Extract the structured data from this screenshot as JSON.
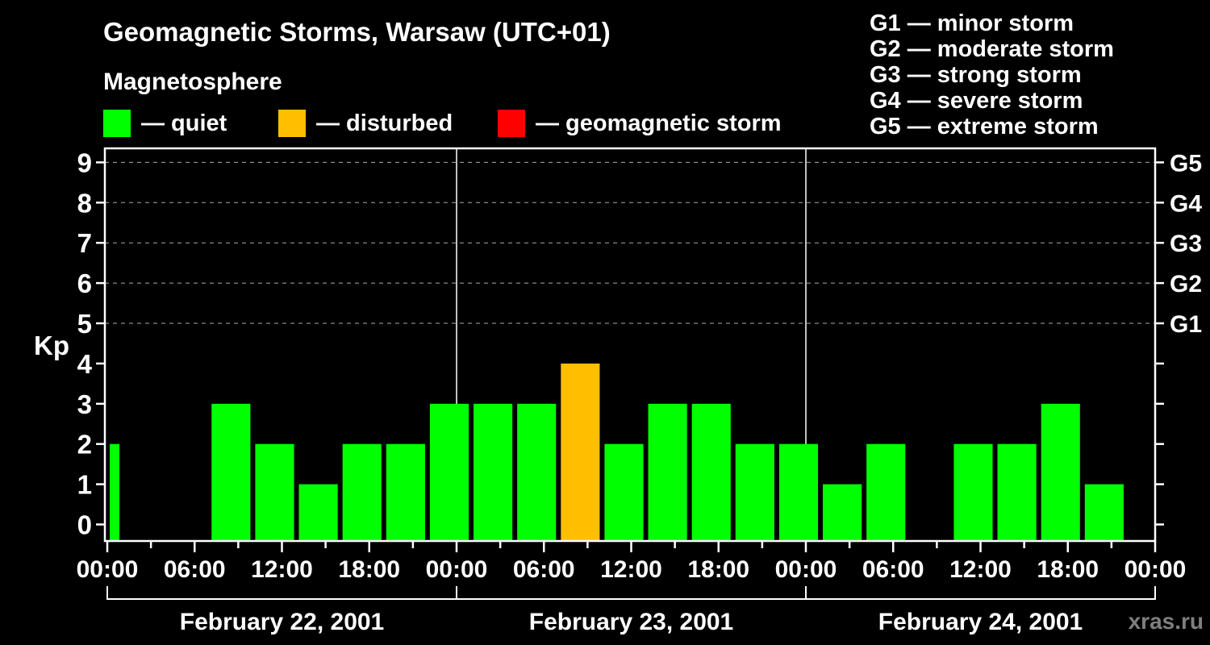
{
  "header": {
    "title": "Geomagnetic Storms, Warsaw (UTC+01)",
    "subtitle": "Magnetosphere"
  },
  "condition_legend": [
    {
      "key": "quiet",
      "label": "— quiet"
    },
    {
      "key": "disturbed",
      "label": "— disturbed"
    },
    {
      "key": "storm",
      "label": "— geomagnetic storm"
    }
  ],
  "storm_scale_legend": [
    {
      "code": "G1",
      "text": "G1 — minor storm"
    },
    {
      "code": "G2",
      "text": "G2 — moderate storm"
    },
    {
      "code": "G3",
      "text": "G3 — strong storm"
    },
    {
      "code": "G4",
      "text": "G4 — severe storm"
    },
    {
      "code": "G5",
      "text": "G5 — extreme storm"
    }
  ],
  "watermark": "xras.ru",
  "colors": {
    "background": "#000000",
    "quiet": "#00ff00",
    "disturbed": "#ffbf00",
    "storm": "#ff0000",
    "axis": "#ffffff",
    "grid": "#aaaaaa",
    "text": "#ffffff",
    "watermark": "#7f7f7f"
  },
  "chart_data": {
    "type": "bar",
    "title": "Geomagnetic Storms, Warsaw (UTC+01)",
    "ylabel": "Kp",
    "xlabel": "",
    "ylim": [
      -0.45,
      9.45
    ],
    "y_ticks": [
      0,
      1,
      2,
      3,
      4,
      5,
      6,
      7,
      8,
      9
    ],
    "grid_levels_dashed": [
      5,
      6,
      7,
      8,
      9
    ],
    "right_axis_labels": [
      {
        "code": "G1",
        "kp": 5
      },
      {
        "code": "G2",
        "kp": 6
      },
      {
        "code": "G3",
        "kp": 7
      },
      {
        "code": "G4",
        "kp": 8
      },
      {
        "code": "G5",
        "kp": 9
      }
    ],
    "x_axis": {
      "total_hours": 72,
      "minor_tick_every_hours": 3,
      "major_tick_every_hours": 6,
      "major_tick_labels_cycle": [
        "00:00",
        "06:00",
        "12:00",
        "18:00"
      ],
      "day_boundaries_hours": [
        24,
        48
      ],
      "day_labels": [
        "February 22, 2001",
        "February 23, 2001",
        "February 24, 2001"
      ]
    },
    "bars": {
      "partial_first": {
        "start_hour": 0,
        "end_hour": 1,
        "kp": 2
      },
      "slot_start_hour": 1,
      "slot_duration_hours": 3,
      "kp_values": [
        0,
        0,
        3,
        2,
        1,
        2,
        2,
        3,
        3,
        3,
        4,
        2,
        3,
        3,
        2,
        2,
        1,
        2,
        0,
        2,
        2,
        3,
        1,
        0
      ]
    },
    "color_rules": {
      "quiet_max_kp": 3,
      "disturbed_kp": 4,
      "storm_min_kp": 5
    },
    "legend_position": "top-left",
    "grid": "dashed horizontal at Kp 5-9 only"
  }
}
